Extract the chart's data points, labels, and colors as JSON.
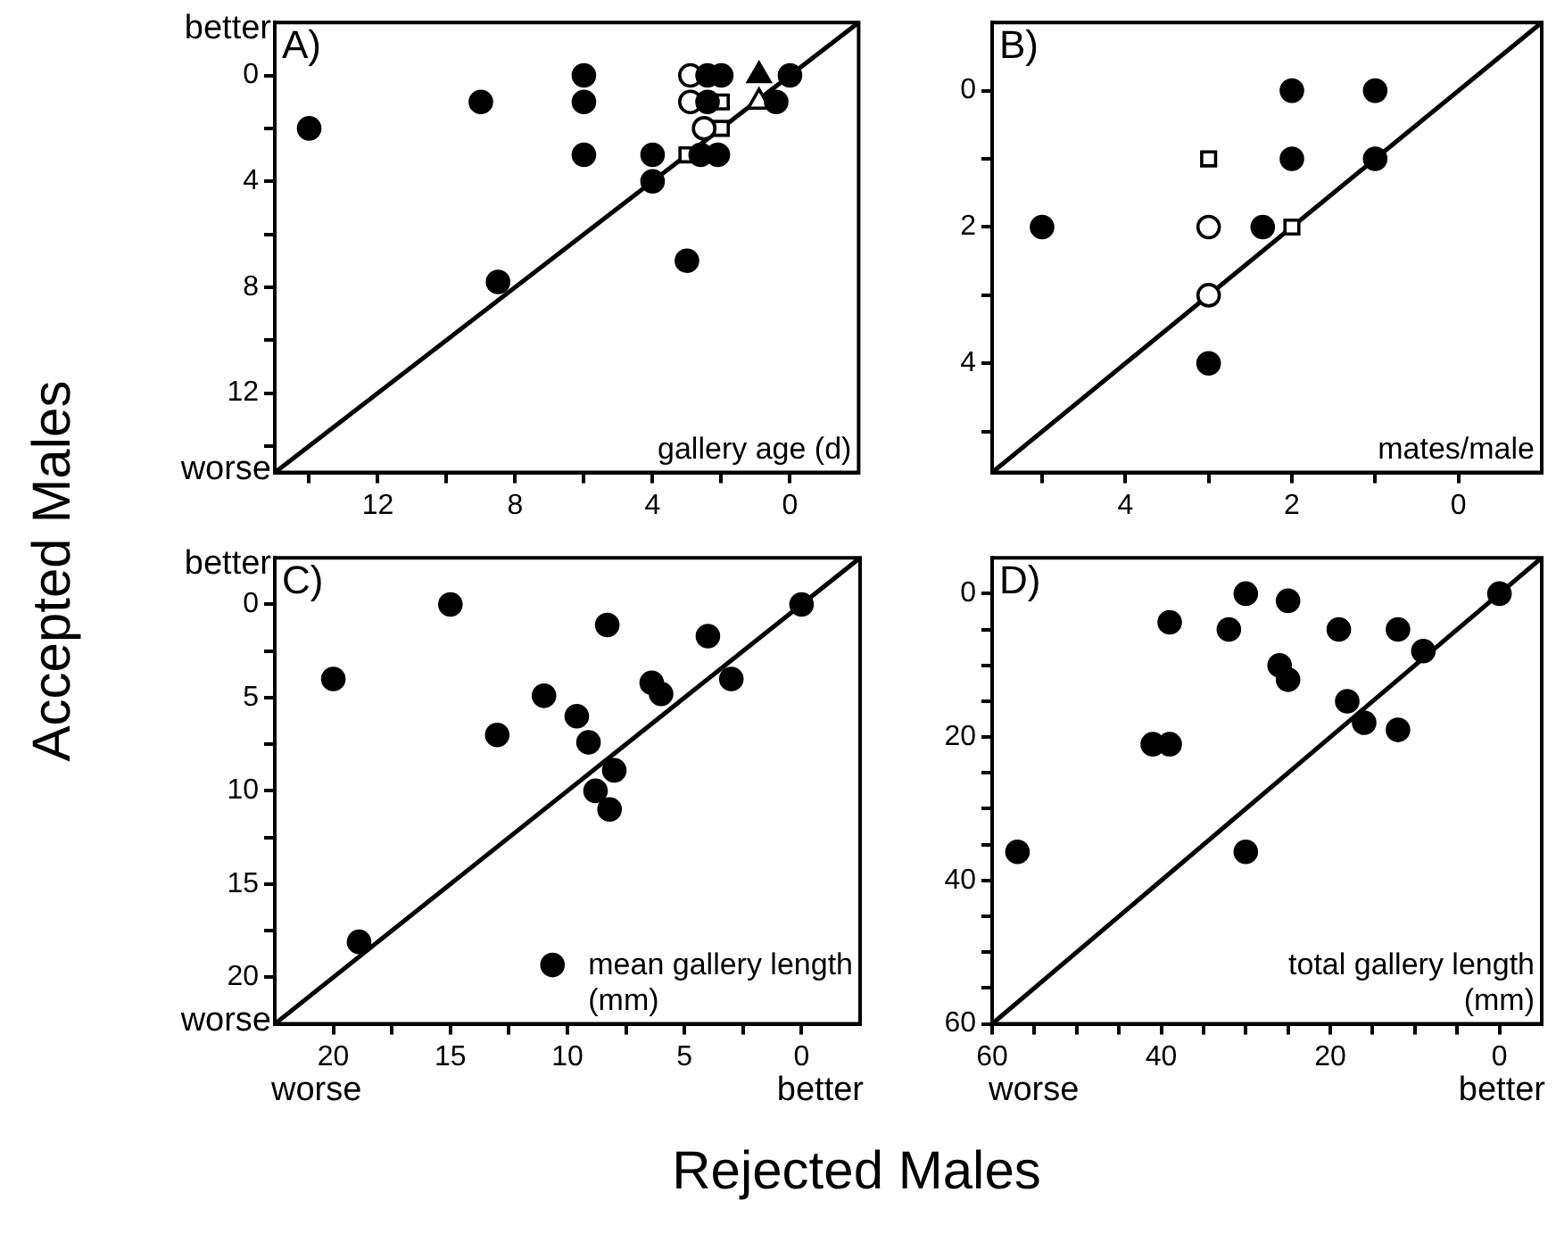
{
  "chart_data": [
    {
      "type": "scatter",
      "title": "A)",
      "ylabel": "Accepted Males",
      "annotations": [
        "gallery age (d)",
        "better",
        "worse"
      ],
      "xlim": [
        15,
        -2
      ],
      "ylim": [
        15,
        -2
      ],
      "xticks": [
        {
          "value": 14,
          "label": null
        },
        12,
        {
          "value": 10,
          "label": null
        },
        8,
        {
          "value": 6,
          "label": null
        },
        4,
        {
          "value": 2,
          "label": null
        },
        0
      ],
      "yticks": [
        0,
        {
          "value": 2,
          "label": null
        },
        4,
        {
          "value": 6,
          "label": null
        },
        8,
        {
          "value": 10,
          "label": null
        },
        12,
        {
          "value": 14,
          "label": null
        }
      ],
      "series": [
        {
          "type": "line",
          "color": "#000000",
          "x": [
            15,
            -2
          ],
          "values": [
            15,
            -2
          ]
        },
        {
          "marker": "circle",
          "color": "#000000",
          "x": [
            14,
            9,
            6,
            6,
            6,
            8.5,
            4,
            4,
            3,
            2.4,
            2,
            0,
            2.4,
            0.4,
            2.6,
            2.1
          ],
          "values": [
            2,
            1,
            0,
            1,
            3,
            7.8,
            3,
            4,
            7,
            0,
            0,
            0,
            1,
            1,
            3,
            3
          ]
        },
        {
          "marker": "circle",
          "color": "#ffffff",
          "x": [
            2.9,
            2.9,
            2.5
          ],
          "values": [
            0,
            1,
            2
          ]
        },
        {
          "marker": "square",
          "color": "#ffffff",
          "x": [
            2,
            2,
            3
          ],
          "values": [
            1,
            2,
            3
          ]
        },
        {
          "marker": "triangle",
          "color": "#000000",
          "x": [
            0.9
          ],
          "values": [
            0
          ]
        },
        {
          "marker": "triangle",
          "color": "#ffffff",
          "x": [
            0.9
          ],
          "values": [
            1
          ]
        }
      ]
    },
    {
      "type": "scatter",
      "title": "B)",
      "annotations": [
        "mates/male"
      ],
      "xlim": [
        5.6,
        -1
      ],
      "ylim": [
        5.6,
        -1
      ],
      "xticks": [
        {
          "value": 5,
          "label": null
        },
        4,
        {
          "value": 3,
          "label": null
        },
        2,
        {
          "value": 1,
          "label": null
        },
        0
      ],
      "yticks": [
        0,
        {
          "value": 1,
          "label": null
        },
        2,
        {
          "value": 3,
          "label": null
        },
        4,
        {
          "value": 5,
          "label": null
        }
      ],
      "series": [
        {
          "type": "line",
          "color": "#000000",
          "x": [
            5.6,
            -1
          ],
          "values": [
            5.6,
            -1
          ]
        },
        {
          "marker": "circle",
          "color": "#000000",
          "x": [
            5,
            2,
            1,
            2,
            1,
            2.35,
            3
          ],
          "values": [
            2,
            0,
            0,
            1,
            1,
            2,
            4
          ]
        },
        {
          "marker": "circle",
          "color": "#ffffff",
          "x": [
            3,
            3
          ],
          "values": [
            2,
            3
          ]
        },
        {
          "marker": "square",
          "color": "#ffffff",
          "x": [
            3,
            2
          ],
          "values": [
            1,
            2
          ]
        }
      ]
    },
    {
      "type": "scatter",
      "title": "C)",
      "xlabel": "Rejected Males",
      "annotations": [
        "better",
        "worse",
        "worse",
        "better"
      ],
      "legend": "bottom right",
      "xlim": [
        22.5,
        -2.5
      ],
      "ylim": [
        22.5,
        -2.5
      ],
      "xticks": [
        20,
        {
          "value": 17.5,
          "label": null
        },
        15,
        {
          "value": 12.5,
          "label": null
        },
        10,
        {
          "value": 7.5,
          "label": null
        },
        5,
        {
          "value": 2.5,
          "label": null
        },
        0
      ],
      "yticks": [
        0,
        {
          "value": 2.5,
          "label": null
        },
        5,
        {
          "value": 7.5,
          "label": null
        },
        10,
        {
          "value": 12.5,
          "label": null
        },
        15,
        {
          "value": 17.5,
          "label": null
        },
        20
      ],
      "series": [
        {
          "type": "line",
          "color": "#000000",
          "x": [
            22.5,
            -2.5
          ],
          "values": [
            22.5,
            -2.5
          ]
        },
        {
          "name": "mean gallery length (mm)",
          "marker": "circle",
          "color": "#000000",
          "x": [
            15,
            20,
            8.3,
            4,
            11,
            6.4,
            6,
            3,
            13,
            9.6,
            9.1,
            8,
            8.8,
            8.2,
            18.9,
            0
          ],
          "values": [
            0,
            4,
            1.1,
            1.7,
            4.9,
            4.2,
            4.8,
            4,
            7,
            6,
            7.4,
            8.9,
            10,
            11,
            18.1,
            0
          ]
        }
      ]
    },
    {
      "type": "scatter",
      "title": "D)",
      "annotations": [
        "total gallery length (mm)",
        "worse",
        "better"
      ],
      "xlim": [
        60,
        -5
      ],
      "ylim": [
        60,
        -5
      ],
      "xticks": [
        60,
        {
          "value": 55,
          "label": null
        },
        {
          "value": 50,
          "label": null
        },
        {
          "value": 45,
          "label": null
        },
        40,
        {
          "value": 35,
          "label": null
        },
        {
          "value": 30,
          "label": null
        },
        {
          "value": 25,
          "label": null
        },
        20,
        {
          "value": 15,
          "label": null
        },
        {
          "value": 10,
          "label": null
        },
        {
          "value": 5,
          "label": null
        },
        0
      ],
      "yticks": [
        0,
        {
          "value": 5,
          "label": null
        },
        {
          "value": 10,
          "label": null
        },
        {
          "value": 15,
          "label": null
        },
        20,
        {
          "value": 25,
          "label": null
        },
        {
          "value": 30,
          "label": null
        },
        {
          "value": 35,
          "label": null
        },
        40,
        {
          "value": 45,
          "label": null
        },
        {
          "value": 50,
          "label": null
        },
        {
          "value": 55,
          "label": null
        },
        60
      ],
      "series": [
        {
          "type": "line",
          "color": "#000000",
          "x": [
            60,
            -5
          ],
          "values": [
            60,
            -5
          ]
        },
        {
          "marker": "circle",
          "color": "#000000",
          "x": [
            57,
            39,
            41,
            39,
            32,
            30,
            30,
            25,
            26,
            25,
            19,
            18,
            16,
            12,
            12,
            9,
            0
          ],
          "values": [
            36,
            4,
            21,
            21,
            5,
            0,
            36,
            1,
            10,
            12,
            5,
            15,
            18,
            5,
            19,
            8,
            0
          ]
        }
      ]
    }
  ]
}
